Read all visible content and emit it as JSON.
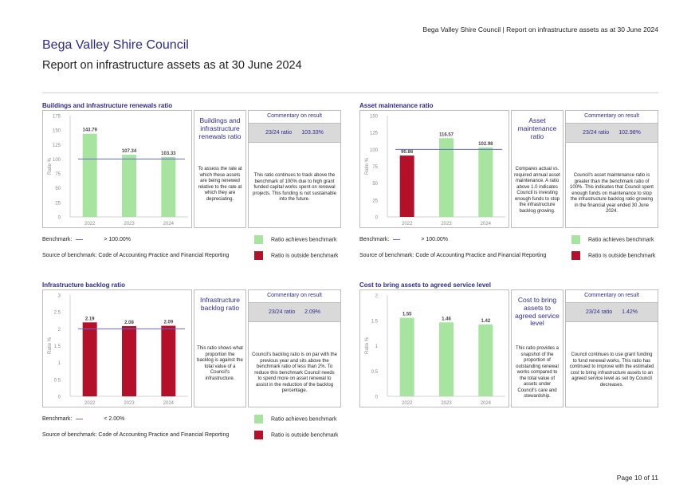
{
  "header": {
    "running_title": "Bega Valley Shire Council | Report on infrastructure assets as at 30 June 2024",
    "org": "Bega Valley Shire Council",
    "title": "Report on infrastructure assets as at 30 June 2024"
  },
  "legend": {
    "achieves": "Ratio achieves benchmark",
    "outside": "Ratio is outside benchmark",
    "achieves_color": "#a6e4a0",
    "outside_color": "#b5102a",
    "benchmark_color": "#6a6ac8"
  },
  "panels": [
    {
      "title": "Buildings and infrastructure renewals ratio",
      "name": "Buildings and infrastructure renewals ratio",
      "description": "To assess the rate at which these assets are being renewed relative to the rate at which they are depreciating.",
      "commentary_heading": "Commentary on result",
      "ratio_label": "23/24 ratio",
      "ratio_value": "103.33%",
      "commentary": "This ratio continues to track above the benchmark of 100% due to high grant funded capital works spent on renewal projects. This funding is not sustainable into the future.",
      "benchmark_label": "Benchmark:",
      "benchmark_value": "> 100.00%",
      "source": "Source of benchmark: Code of Accounting Practice and Financial Reporting"
    },
    {
      "title": "Asset maintenance ratio",
      "name": "Asset maintenance ratio",
      "description": "Compares actual vs. required annual asset maintenance. A ratio above 1.0 indicates Council is investing enough funds to stop the infrastructure backlog growing.",
      "commentary_heading": "Commentary on result",
      "ratio_label": "23/24 ratio",
      "ratio_value": "102.98%",
      "commentary": "Council's asset maintenance ratio is greater than the benchmark ratio of 100%. This indicates that Council spent enough funds on maintenance to stop the infrastructure backlog ratio growing in the financial year ended 30 June 2024.",
      "benchmark_label": "Benchmark:",
      "benchmark_value": "> 100.00%",
      "source": "Source of benchmark: Code of Accounting Practice and Financial Reporting"
    },
    {
      "title": "Infrastructure backlog ratio",
      "name": "Infrastructure backlog ratio",
      "description": "This ratio shows what proportion the backlog is against the total value of a Council's infrastructure.",
      "commentary_heading": "Commentary on result",
      "ratio_label": "23/24 ratio",
      "ratio_value": "2.09%",
      "commentary": "Council's backlog ratio is on par with the previous year and sits above the benchmark ratio of less than 2%. To reduce this benchmark Council needs to spend more on asset renewal to assist in the reduction of the backlog percentage.",
      "benchmark_label": "Benchmark:",
      "benchmark_value": "< 2.00%",
      "source": "Source of benchmark: Code of Accounting Practice and Financial Reporting"
    },
    {
      "title": "Cost to bring assets to agreed service level",
      "name": "Cost to bring assets to agreed service level",
      "description": "This ratio provides a snapshot of the proportion of outstanding renewal works compared to the total value of assets under Council's care and stewardship.",
      "commentary_heading": "Commentary on result",
      "ratio_label": "23/24 ratio",
      "ratio_value": "1.42%",
      "commentary": "Council continues to use grant funding to fund renewal works. This ratio has continued to improve with the estimated cost to bring infrastructure assets to an agreed service level as set by Council decreases.",
      "benchmark_label": "",
      "benchmark_value": "",
      "source": ""
    }
  ],
  "chart_data": [
    {
      "type": "bar",
      "ylabel": "Ratio %",
      "categories": [
        "2022",
        "2023",
        "2024"
      ],
      "values": [
        143.79,
        107.34,
        103.33
      ],
      "value_labels": [
        "143.79",
        "107.34",
        "103.33"
      ],
      "colors": [
        "#a6e4a0",
        "#a6e4a0",
        "#a6e4a0"
      ],
      "yticks": [
        "0",
        "25",
        "50",
        "75",
        "100",
        "125",
        "150",
        "175"
      ],
      "ylim": [
        0,
        175
      ],
      "benchmark": 100,
      "grid": false
    },
    {
      "type": "bar",
      "ylabel": "Ratio %",
      "categories": [
        "2022",
        "2023",
        "2024"
      ],
      "values": [
        90.86,
        116.57,
        102.98
      ],
      "value_labels": [
        "90.86",
        "116.57",
        "102.98"
      ],
      "colors": [
        "#b5102a",
        "#a6e4a0",
        "#a6e4a0"
      ],
      "yticks": [
        "0",
        "25",
        "50",
        "75",
        "100",
        "125",
        "150"
      ],
      "ylim": [
        0,
        150
      ],
      "benchmark": 100,
      "grid": false
    },
    {
      "type": "bar",
      "ylabel": "Ratio %",
      "categories": [
        "2022",
        "2023",
        "2024"
      ],
      "values": [
        2.19,
        2.08,
        2.09
      ],
      "value_labels": [
        "2.19",
        "2.08",
        "2.09"
      ],
      "colors": [
        "#b5102a",
        "#b5102a",
        "#b5102a"
      ],
      "yticks": [
        "0",
        "0.5",
        "1",
        "1.5",
        "2",
        "2.5",
        "3"
      ],
      "ylim": [
        0,
        3
      ],
      "benchmark": 2,
      "grid": false
    },
    {
      "type": "bar",
      "ylabel": "Ratio %",
      "categories": [
        "2022",
        "2023",
        "2024"
      ],
      "values": [
        1.55,
        1.46,
        1.42
      ],
      "value_labels": [
        "1.55",
        "1.46",
        "1.42"
      ],
      "colors": [
        "#a6e4a0",
        "#a6e4a0",
        "#a6e4a0"
      ],
      "yticks": [
        "0",
        "0.5",
        "1",
        "1.5",
        "2"
      ],
      "ylim": [
        0,
        2
      ],
      "benchmark": null,
      "grid": false
    }
  ],
  "footer": {
    "page": "Page 10 of 11"
  }
}
